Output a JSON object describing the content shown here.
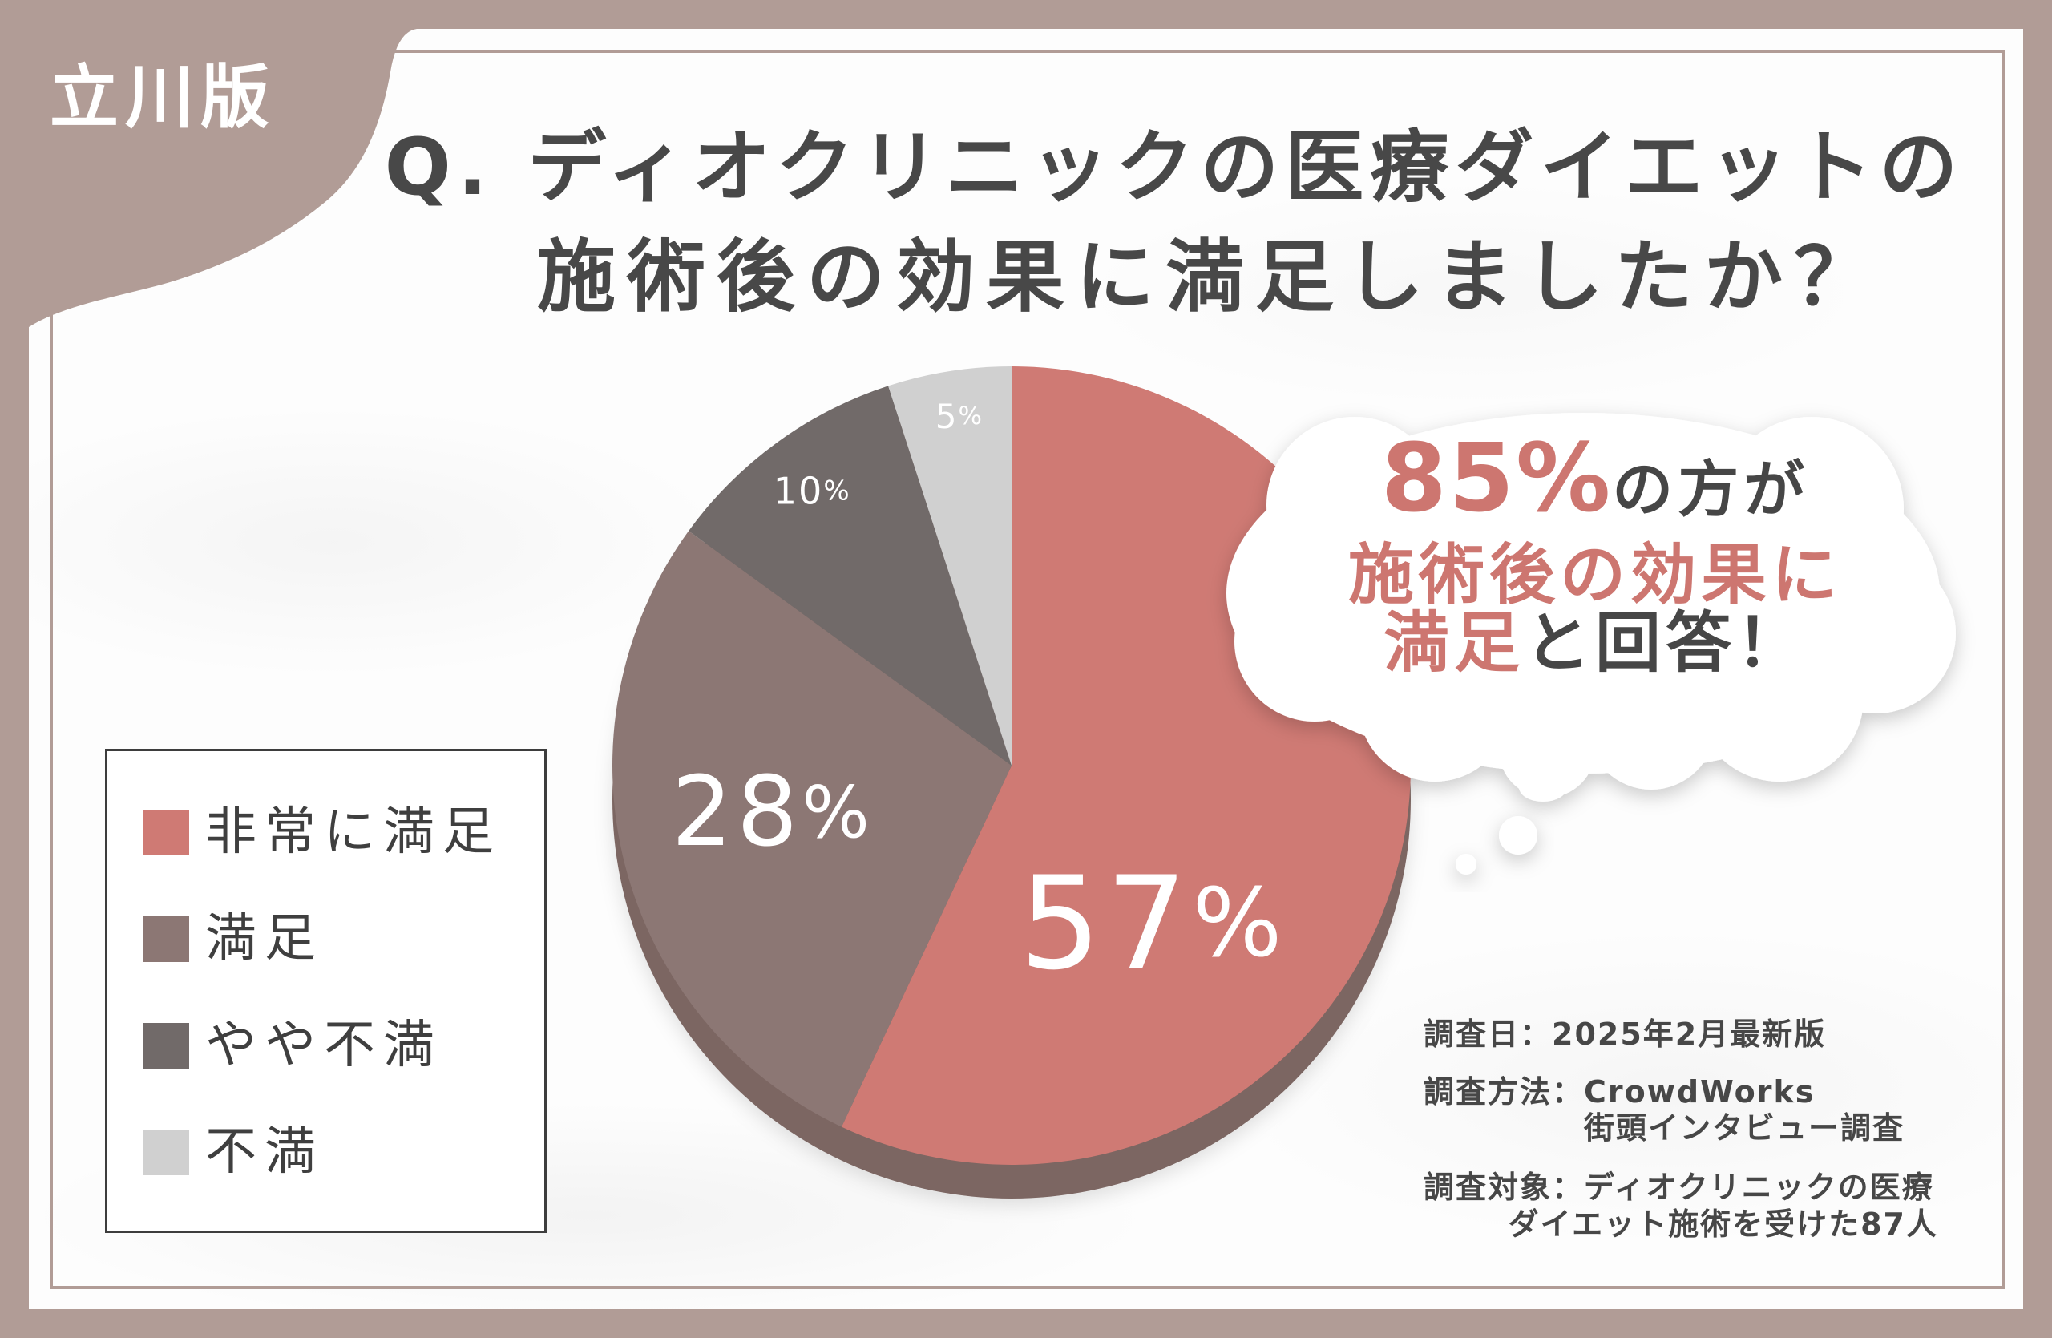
{
  "badge": {
    "label": "立川版"
  },
  "title": {
    "line1": "Q. ディオクリニックの医療ダイエットの",
    "line2": "施術後の効果に満足しましたか？"
  },
  "colors": {
    "frame": "#b19c96",
    "accent": "#cd7670",
    "text": "#464646",
    "depth": "#7c6662"
  },
  "chart_data": {
    "type": "pie",
    "categories": [
      "非常に満足",
      "満足",
      "やや不満",
      "不満"
    ],
    "values": [
      57,
      28,
      10,
      5
    ],
    "unit": "%",
    "colors": [
      "#cf7a74",
      "#8c7774",
      "#716a69",
      "#d0d0d0"
    ],
    "legend_position": "left"
  },
  "callout": {
    "highlight_value": "85%",
    "line1_suffix": "の方が",
    "line2": "施術後の効果に",
    "line3_highlight": "満足",
    "line3_suffix": "と回答！"
  },
  "survey": {
    "date_label": "調査日：",
    "date": "2025年2月最新版",
    "method_label": "調査方法：",
    "method_line1": "CrowdWorks",
    "method_line2": "街頭インタビュー調査",
    "target_label": "調査対象：",
    "target_line1": "ディオクリニックの医療",
    "target_line2": "ダイエット施術を受けた87人"
  }
}
